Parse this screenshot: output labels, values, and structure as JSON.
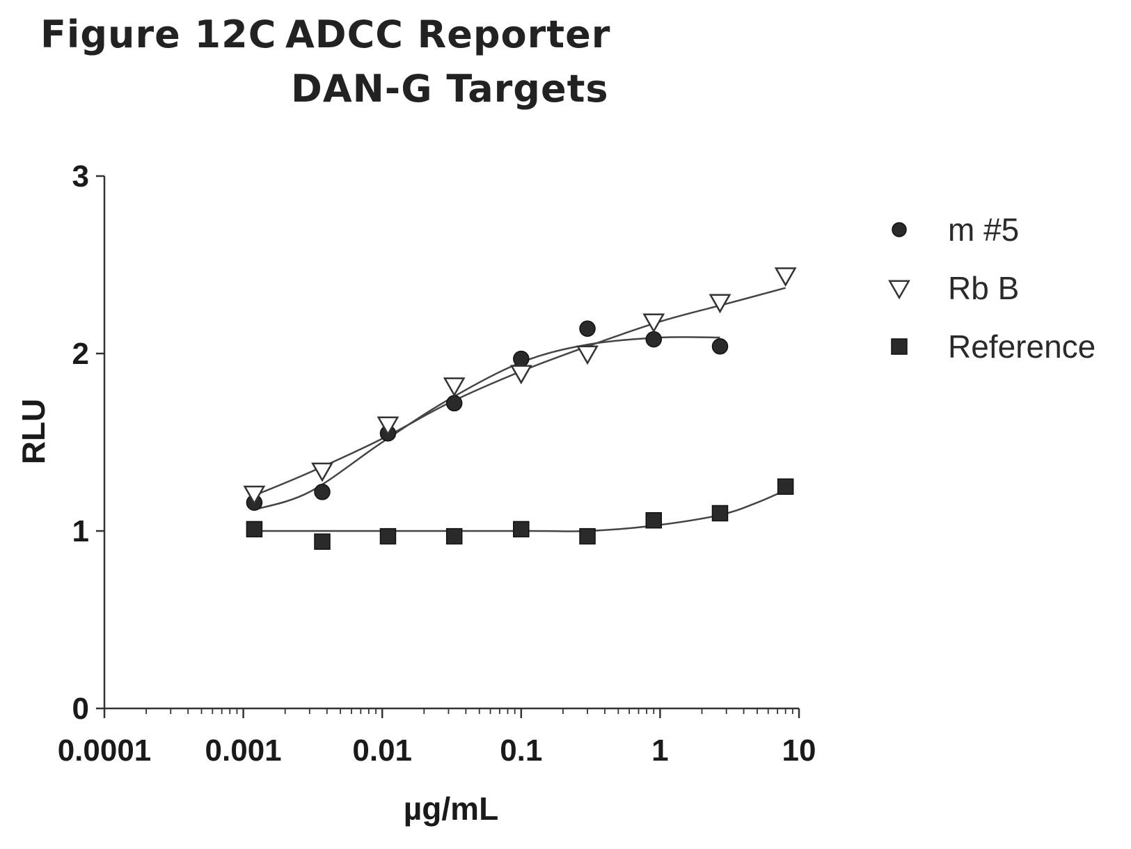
{
  "figure_label": "Figure 12C",
  "chart_data": {
    "type": "scatter",
    "title_lines": [
      "ADCC Reporter",
      "DAN-G Targets"
    ],
    "xlabel": "µg/mL",
    "ylabel": "RLU",
    "xscale": "log",
    "xlim": [
      0.0001,
      10
    ],
    "ylim": [
      0,
      3
    ],
    "x_ticks": [
      {
        "value": 0.0001,
        "label": "0.0001"
      },
      {
        "value": 0.001,
        "label": "0.001"
      },
      {
        "value": 0.01,
        "label": "0.01"
      },
      {
        "value": 0.1,
        "label": "0.1"
      },
      {
        "value": 1,
        "label": "1"
      },
      {
        "value": 10,
        "label": "10"
      }
    ],
    "y_ticks": [
      {
        "value": 0,
        "label": "0"
      },
      {
        "value": 1,
        "label": "1"
      },
      {
        "value": 2,
        "label": "2"
      },
      {
        "value": 3,
        "label": "3"
      }
    ],
    "legend_position": "top-right",
    "series": [
      {
        "name": "m #5",
        "marker": "circle",
        "color": "#222222",
        "points": [
          [
            0.0012,
            1.16
          ],
          [
            0.0037,
            1.22
          ],
          [
            0.011,
            1.55
          ],
          [
            0.033,
            1.72
          ],
          [
            0.1,
            1.97
          ],
          [
            0.3,
            2.14
          ],
          [
            0.9,
            2.08
          ],
          [
            2.7,
            2.04
          ]
        ],
        "fit": [
          [
            0.0012,
            1.12
          ],
          [
            0.003,
            1.22
          ],
          [
            0.01,
            1.5
          ],
          [
            0.03,
            1.74
          ],
          [
            0.1,
            1.95
          ],
          [
            0.3,
            2.05
          ],
          [
            1,
            2.09
          ],
          [
            2.7,
            2.09
          ]
        ]
      },
      {
        "name": "Rb B",
        "marker": "triangle-down",
        "color": "#222222",
        "points": [
          [
            0.0012,
            1.21
          ],
          [
            0.0037,
            1.34
          ],
          [
            0.011,
            1.6
          ],
          [
            0.033,
            1.82
          ],
          [
            0.1,
            1.89
          ],
          [
            0.3,
            2.0
          ],
          [
            0.9,
            2.18
          ],
          [
            2.7,
            2.29
          ],
          [
            8,
            2.44
          ]
        ],
        "fit": [
          [
            0.0012,
            1.2
          ],
          [
            0.003,
            1.33
          ],
          [
            0.01,
            1.52
          ],
          [
            0.03,
            1.72
          ],
          [
            0.1,
            1.9
          ],
          [
            0.3,
            2.04
          ],
          [
            1,
            2.18
          ],
          [
            3,
            2.28
          ],
          [
            8,
            2.37
          ]
        ]
      },
      {
        "name": "Reference",
        "marker": "square",
        "color": "#222222",
        "points": [
          [
            0.0012,
            1.01
          ],
          [
            0.0037,
            0.94
          ],
          [
            0.011,
            0.97
          ],
          [
            0.033,
            0.97
          ],
          [
            0.1,
            1.01
          ],
          [
            0.3,
            0.97
          ],
          [
            0.9,
            1.06
          ],
          [
            2.7,
            1.1
          ],
          [
            8,
            1.25
          ]
        ],
        "fit": [
          [
            0.0012,
            1.0
          ],
          [
            0.1,
            1.0
          ],
          [
            0.3,
            1.0
          ],
          [
            0.9,
            1.03
          ],
          [
            2.7,
            1.09
          ],
          [
            5,
            1.16
          ],
          [
            8,
            1.23
          ]
        ]
      }
    ]
  }
}
